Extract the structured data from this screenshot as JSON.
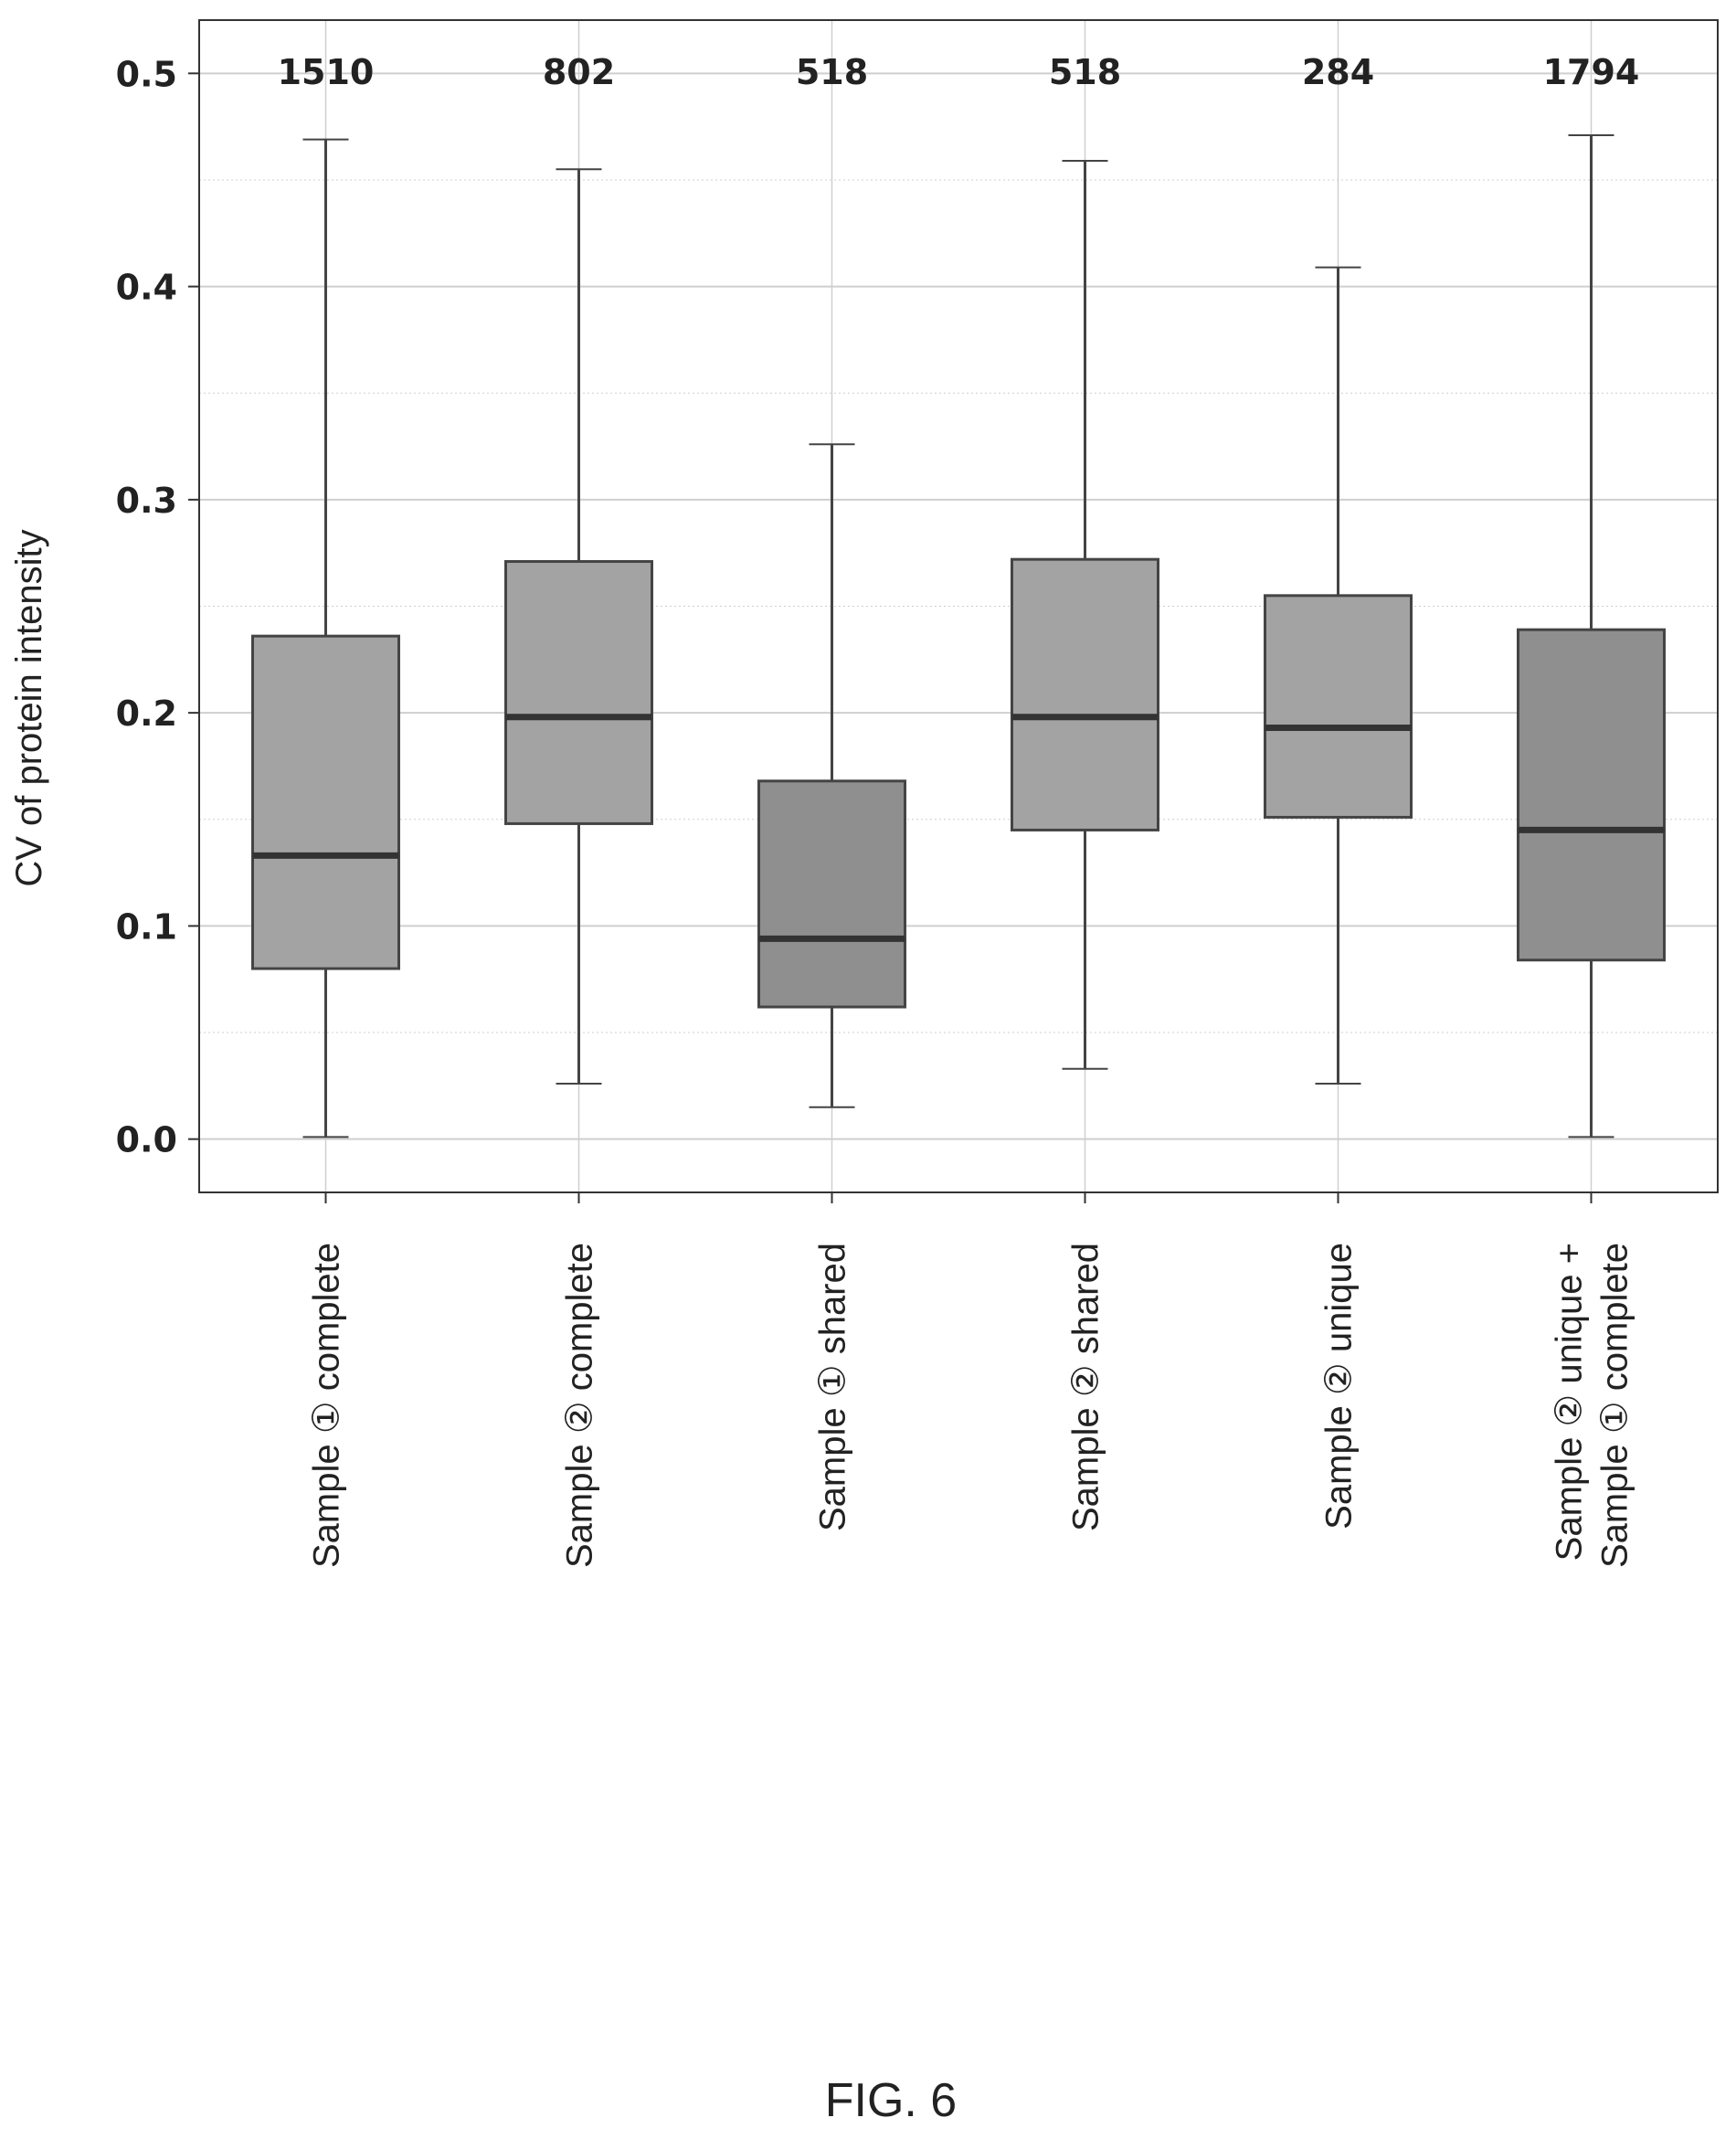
{
  "chart_data": {
    "type": "box",
    "title": "",
    "xlabel": "",
    "ylabel": "CV of protein intensity",
    "ylim": [
      -0.025,
      0.525
    ],
    "yticks": [
      "0.0",
      "0.1",
      "0.2",
      "0.3",
      "0.4",
      "0.5"
    ],
    "grid": true,
    "categories": [
      [
        "Sample ① complete"
      ],
      [
        "Sample ② complete"
      ],
      [
        "Sample ① shared"
      ],
      [
        "Sample ② shared"
      ],
      [
        "Sample ② unique"
      ],
      [
        "Sample ② unique +",
        "Sample ① complete"
      ]
    ],
    "counts": [
      "1510",
      "802",
      "518",
      "518",
      "284",
      "1794"
    ],
    "series": [
      {
        "boxes": [
          {
            "whisker_low": 0.001,
            "q1": 0.08,
            "median": 0.133,
            "q3": 0.236,
            "whisker_high": 0.469
          },
          {
            "whisker_low": 0.026,
            "q1": 0.148,
            "median": 0.198,
            "q3": 0.271,
            "whisker_high": 0.455
          },
          {
            "whisker_low": 0.015,
            "q1": 0.062,
            "median": 0.094,
            "q3": 0.168,
            "whisker_high": 0.326
          },
          {
            "whisker_low": 0.033,
            "q1": 0.145,
            "median": 0.198,
            "q3": 0.272,
            "whisker_high": 0.459
          },
          {
            "whisker_low": 0.026,
            "q1": 0.151,
            "median": 0.193,
            "q3": 0.255,
            "whisker_high": 0.409
          },
          {
            "whisker_low": 0.001,
            "q1": 0.084,
            "median": 0.145,
            "q3": 0.239,
            "whisker_high": 0.471
          }
        ]
      }
    ],
    "colors": {
      "box_fill": "#a3a3a3",
      "box_fill_dark": "#8f8f8f",
      "box_edge": "#444444",
      "median": "#333333",
      "grid": "#cfcfcf",
      "frame": "#333333"
    }
  },
  "caption": "FIG. 6"
}
